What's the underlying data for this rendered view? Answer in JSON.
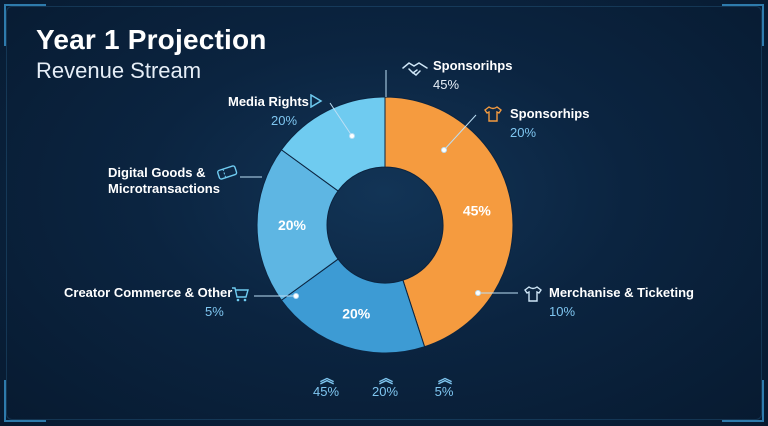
{
  "header": {
    "title": "Year 1 Projection",
    "subtitle": "Revenue Stream"
  },
  "chart_data": {
    "type": "pie",
    "title": "Year 1 Projection",
    "subtitle": "Revenue Stream",
    "slices": [
      {
        "value": 45,
        "label": "45%",
        "color": "#f59b3f"
      },
      {
        "value": 20,
        "label": "20%",
        "color": "#3d9bd4"
      },
      {
        "value": 20,
        "label": "20%",
        "color": "#5eb6e3"
      },
      {
        "value": 15,
        "label": "",
        "color": "#6fcbf0"
      }
    ]
  },
  "annotations": [
    {
      "label": "Sponsorihps",
      "pct": "45%",
      "icon": "handshake-icon"
    },
    {
      "label": "Sponsorhips",
      "pct": "20%",
      "icon": "tshirt-icon"
    },
    {
      "label": "Media Rights",
      "pct": "20%",
      "icon": "play-icon"
    },
    {
      "label": "Digital Goods &",
      "label2": "Microtransactions",
      "icon": "ticket-icon"
    },
    {
      "label": "Creator Commerce & Other",
      "pct": "5%",
      "icon": "cart-icon"
    },
    {
      "label": "Merchanise & Ticketing",
      "pct": "10%",
      "icon": "shirt-icon"
    }
  ],
  "footer_stats": [
    {
      "value": "45%",
      "icon": "chevron-up-icon"
    },
    {
      "value": "20%",
      "icon": "chevron-up-icon"
    },
    {
      "value": "5%",
      "icon": "chevron-up-icon"
    }
  ]
}
